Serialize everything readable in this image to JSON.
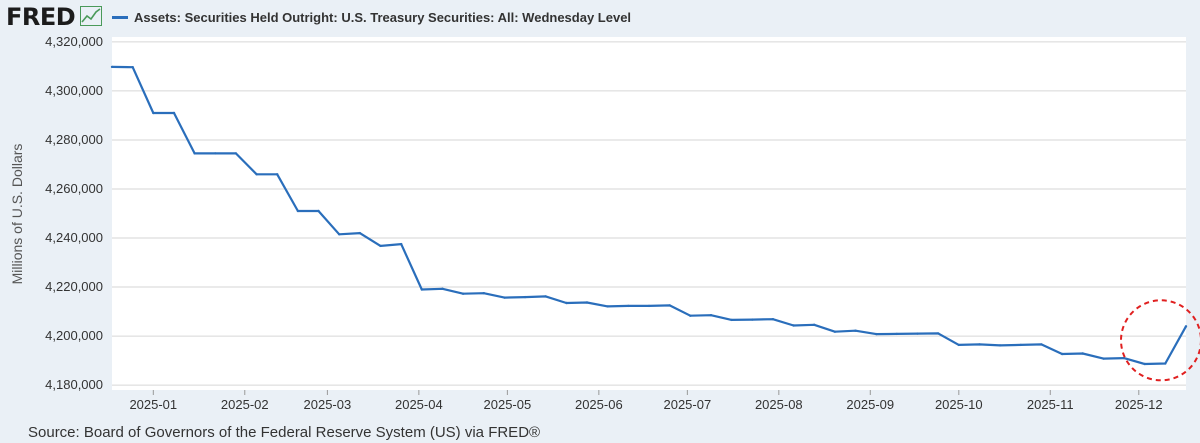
{
  "header": {
    "logo_text": "FRED",
    "legend_label": "Assets: Securities Held Outright: U.S. Treasury Securities: All: Wednesday Level"
  },
  "source": "Source: Board of Governors of the Federal Reserve System (US) via FRED®",
  "colors": {
    "line": "#2a6ebb",
    "highlight_circle": "#e02020",
    "grid": "#d6d6d6"
  },
  "chart_data": {
    "type": "line",
    "title": "Assets: Securities Held Outright: U.S. Treasury Securities: All: Wednesday Level",
    "xlabel": "",
    "ylabel": "Millions of U.S. Dollars",
    "ylim": [
      4178000,
      4322000
    ],
    "yticks": [
      4180000,
      4200000,
      4220000,
      4240000,
      4260000,
      4280000,
      4300000,
      4320000
    ],
    "ytick_labels": [
      "4,180,000",
      "4,200,000",
      "4,220,000",
      "4,240,000",
      "4,260,000",
      "4,280,000",
      "4,300,000",
      "4,320,000"
    ],
    "xlim": [
      "2024-12-18",
      "2025-12-17"
    ],
    "xticks": [
      "2025-01-01",
      "2025-02-01",
      "2025-03-01",
      "2025-04-01",
      "2025-05-01",
      "2025-06-01",
      "2025-07-01",
      "2025-08-01",
      "2025-09-01",
      "2025-10-01",
      "2025-11-01",
      "2025-12-01"
    ],
    "xtick_labels": [
      "2025-01",
      "2025-02",
      "2025-03",
      "2025-04",
      "2025-05",
      "2025-06",
      "2025-07",
      "2025-08",
      "2025-09",
      "2025-10",
      "2025-11",
      "2025-12"
    ],
    "grid": true,
    "annotation": "dashed circle around latest uptick",
    "series": [
      {
        "name": "Assets: Securities Held Outright: U.S. Treasury Securities: All: Wednesday Level",
        "points": [
          [
            "2024-12-18",
            4309800
          ],
          [
            "2024-12-25",
            4309700
          ],
          [
            "2025-01-01",
            4291000
          ],
          [
            "2025-01-08",
            4291000
          ],
          [
            "2025-01-15",
            4274500
          ],
          [
            "2025-01-22",
            4274500
          ],
          [
            "2025-01-29",
            4274500
          ],
          [
            "2025-02-05",
            4266000
          ],
          [
            "2025-02-12",
            4266000
          ],
          [
            "2025-02-19",
            4251000
          ],
          [
            "2025-02-26",
            4251000
          ],
          [
            "2025-03-05",
            4241500
          ],
          [
            "2025-03-12",
            4242000
          ],
          [
            "2025-03-19",
            4236800
          ],
          [
            "2025-03-26",
            4237500
          ],
          [
            "2025-04-02",
            4219000
          ],
          [
            "2025-04-09",
            4219300
          ],
          [
            "2025-04-16",
            4217300
          ],
          [
            "2025-04-23",
            4217500
          ],
          [
            "2025-04-30",
            4215700
          ],
          [
            "2025-05-07",
            4215900
          ],
          [
            "2025-05-14",
            4216200
          ],
          [
            "2025-05-21",
            4213500
          ],
          [
            "2025-05-28",
            4213700
          ],
          [
            "2025-06-04",
            4212100
          ],
          [
            "2025-06-11",
            4212300
          ],
          [
            "2025-06-18",
            4212300
          ],
          [
            "2025-06-25",
            4212500
          ],
          [
            "2025-07-02",
            4208300
          ],
          [
            "2025-07-09",
            4208500
          ],
          [
            "2025-07-16",
            4206600
          ],
          [
            "2025-07-23",
            4206700
          ],
          [
            "2025-07-30",
            4206900
          ],
          [
            "2025-08-06",
            4204300
          ],
          [
            "2025-08-13",
            4204600
          ],
          [
            "2025-08-20",
            4201800
          ],
          [
            "2025-08-27",
            4202200
          ],
          [
            "2025-09-03",
            4200800
          ],
          [
            "2025-09-10",
            4200900
          ],
          [
            "2025-09-17",
            4201000
          ],
          [
            "2025-09-24",
            4201100
          ],
          [
            "2025-10-01",
            4196400
          ],
          [
            "2025-10-08",
            4196600
          ],
          [
            "2025-10-15",
            4196200
          ],
          [
            "2025-10-22",
            4196400
          ],
          [
            "2025-10-29",
            4196600
          ],
          [
            "2025-11-05",
            4192700
          ],
          [
            "2025-11-12",
            4192900
          ],
          [
            "2025-11-19",
            4190800
          ],
          [
            "2025-11-26",
            4191000
          ],
          [
            "2025-12-03",
            4188600
          ],
          [
            "2025-12-10",
            4188800
          ],
          [
            "2025-12-17",
            4204000
          ]
        ]
      }
    ]
  }
}
